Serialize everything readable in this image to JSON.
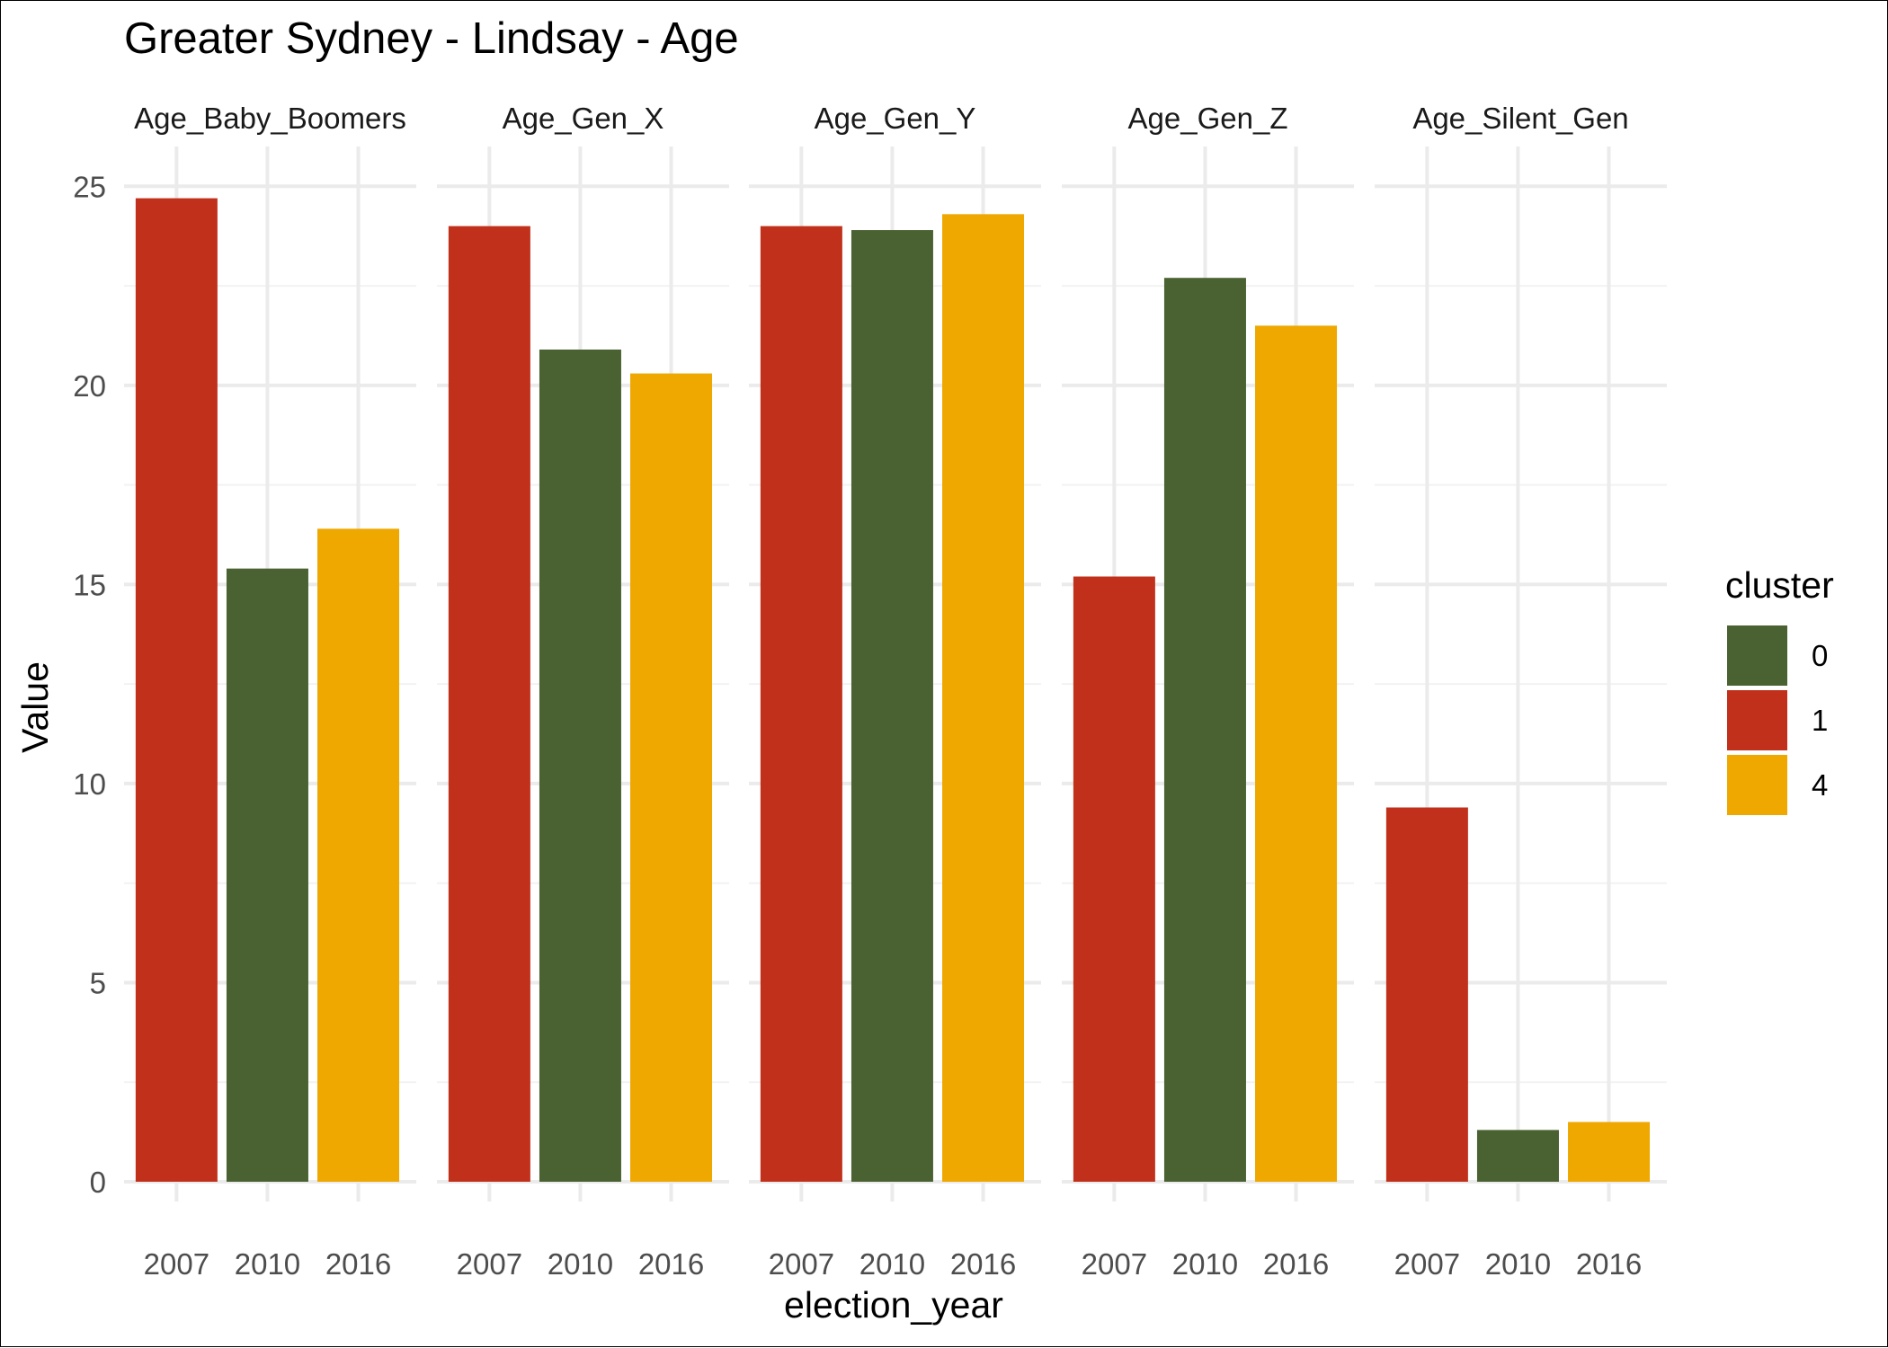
{
  "chart_data": {
    "type": "bar",
    "title": "Greater Sydney - Lindsay - Age",
    "xlabel": "election_year",
    "ylabel": "Value",
    "ylim": [
      0,
      26
    ],
    "yticks": [
      0,
      5,
      10,
      15,
      20,
      25
    ],
    "categories": [
      "2007",
      "2010",
      "2016"
    ],
    "grid": true,
    "legend": {
      "title": "cluster",
      "position": "right",
      "entries": [
        {
          "label": "0",
          "color": "#4a6131"
        },
        {
          "label": "1",
          "color": "#c0301b"
        },
        {
          "label": "4",
          "color": "#eea800"
        }
      ]
    },
    "category_cluster": [
      "1",
      "0",
      "4"
    ],
    "facets": [
      {
        "name": "Age_Baby_Boomers",
        "values": [
          24.7,
          15.4,
          16.4
        ],
        "clusters": [
          "1",
          "0",
          "4"
        ]
      },
      {
        "name": "Age_Gen_X",
        "values": [
          24.0,
          20.9,
          20.3
        ],
        "clusters": [
          "1",
          "0",
          "4"
        ]
      },
      {
        "name": "Age_Gen_Y",
        "values": [
          24.0,
          23.9,
          24.3
        ],
        "clusters": [
          "1",
          "0",
          "4"
        ]
      },
      {
        "name": "Age_Gen_Z",
        "values": [
          15.2,
          22.7,
          21.5
        ],
        "clusters": [
          "1",
          "0",
          "4"
        ]
      },
      {
        "name": "Age_Silent_Gen",
        "values": [
          9.4,
          1.3,
          1.5
        ],
        "clusters": [
          "1",
          "0",
          "4"
        ]
      }
    ]
  }
}
